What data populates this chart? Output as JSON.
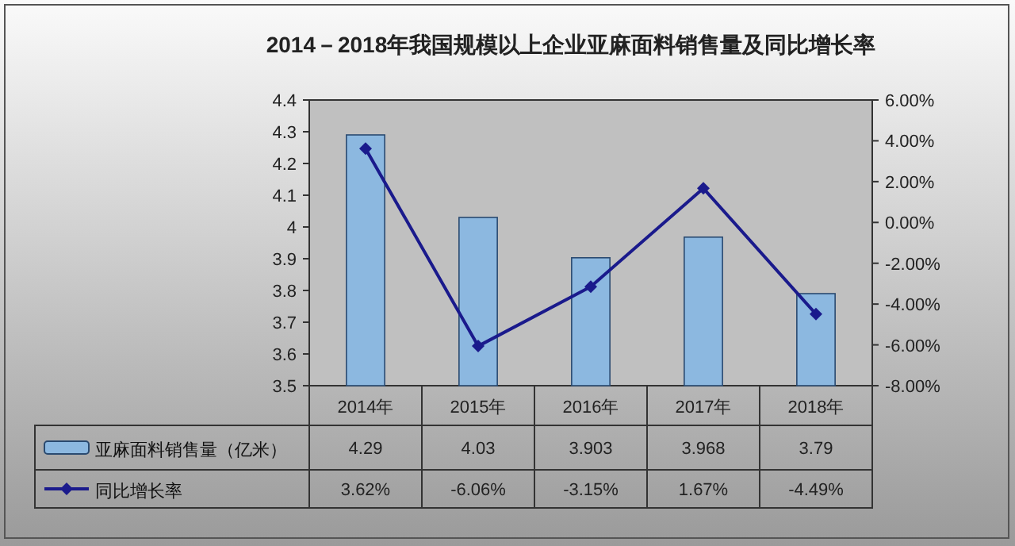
{
  "chart_data": {
    "type": "bar",
    "title": "2014－2018年我国规模以上企业亚麻面料销售量及同比增长率",
    "categories": [
      "2014年",
      "2015年",
      "2016年",
      "2017年",
      "2018年"
    ],
    "series": [
      {
        "name": "亚麻面料销售量（亿米）",
        "color": "#8cb8e0",
        "values": [
          4.29,
          4.03,
          3.903,
          3.968,
          3.79
        ],
        "value_labels": [
          "4.29",
          "4.03",
          "3.903",
          "3.968",
          "3.79"
        ]
      },
      {
        "name": "同比增长率",
        "type": "line",
        "axis": "y2",
        "color": "#1a1a8c",
        "values": [
          3.62,
          -6.06,
          -3.15,
          1.67,
          -4.49
        ],
        "value_labels": [
          "3.62%",
          "-6.06%",
          "-3.15%",
          "1.67%",
          "-4.49%"
        ]
      }
    ],
    "ylim": [
      3.5,
      4.4
    ],
    "yticks": [
      3.5,
      3.6,
      3.7,
      3.8,
      3.9,
      {
        "value": 4.0,
        "label": "4"
      },
      4.1,
      4.2,
      4.3,
      4.4
    ],
    "y2lim": [
      -8,
      6
    ],
    "y2ticks": [
      {
        "value": -8,
        "label": "-8.00%"
      },
      {
        "value": -6,
        "label": "-6.00%"
      },
      {
        "value": -4,
        "label": "-4.00%"
      },
      {
        "value": -2,
        "label": "-2.00%"
      },
      {
        "value": 0,
        "label": "0.00%"
      },
      {
        "value": 2,
        "label": "2.00%"
      },
      {
        "value": 4,
        "label": "4.00%"
      },
      {
        "value": 6,
        "label": "6.00%"
      }
    ],
    "marker": "diamond",
    "legend": "bottom",
    "grid": false
  }
}
